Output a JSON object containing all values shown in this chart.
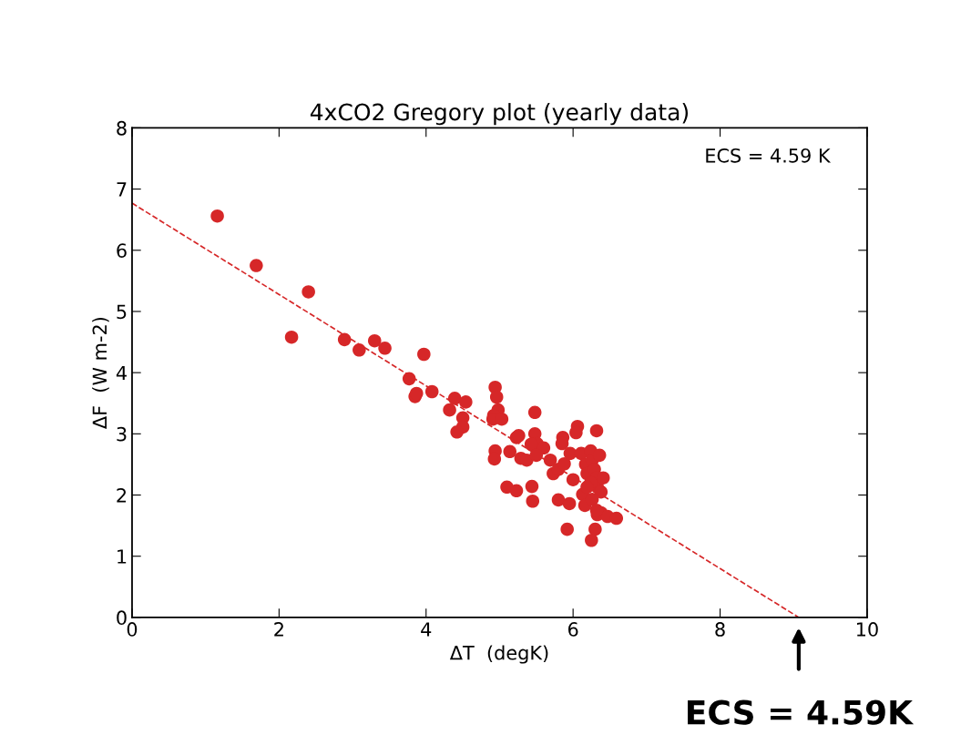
{
  "chart_data": {
    "type": "scatter",
    "title": "4xCO2 Gregory plot (yearly data)",
    "xlabel": "ΔT  (degK)",
    "ylabel": "ΔF  (W m-2)",
    "xlim": [
      0,
      10
    ],
    "ylim": [
      0,
      8
    ],
    "xticks": [
      0,
      2,
      4,
      6,
      8,
      10
    ],
    "yticks": [
      0,
      1,
      2,
      3,
      4,
      5,
      6,
      7,
      8
    ],
    "grid": false,
    "marker": "circle",
    "annotations": [
      "ECS = 4.59 K",
      {
        "text": "ECS = 4.59K",
        "x": 9.07,
        "y": 0
      }
    ],
    "series": [
      {
        "color": "#d62728",
        "x": [
          1.16,
          1.69,
          2.4,
          2.17,
          2.89,
          3.09,
          3.3,
          3.44,
          3.97,
          3.77,
          3.85,
          3.87,
          4.08,
          4.32,
          4.39,
          4.54,
          4.5,
          4.5,
          4.42,
          4.94,
          4.96,
          4.98,
          4.92,
          4.91,
          5.03,
          4.94,
          4.93,
          5.1,
          5.23,
          5.44,
          5.45,
          5.14,
          5.23,
          5.26,
          5.29,
          5.37,
          5.48,
          5.48,
          5.51,
          5.43,
          5.6,
          5.5,
          5.69,
          5.73,
          5.8,
          5.86,
          5.85,
          5.88,
          5.96,
          5.8,
          5.95,
          5.92,
          6.0,
          6.06,
          6.04,
          6.11,
          6.17,
          6.19,
          6.13,
          6.16,
          6.24,
          6.26,
          6.29,
          6.32,
          6.36,
          6.33,
          6.38,
          6.41,
          6.26,
          6.32,
          6.38,
          6.33,
          6.47,
          6.59,
          6.3,
          6.25,
          6.24,
          6.19,
          6.32
        ],
        "values": [
          6.56,
          5.75,
          5.32,
          4.58,
          4.54,
          4.37,
          4.52,
          4.4,
          4.3,
          3.9,
          3.61,
          3.66,
          3.69,
          3.39,
          3.58,
          3.52,
          3.26,
          3.11,
          3.03,
          3.76,
          3.6,
          3.39,
          3.3,
          3.24,
          3.24,
          2.72,
          2.59,
          2.13,
          2.07,
          2.14,
          1.9,
          2.71,
          2.94,
          2.97,
          2.6,
          2.57,
          3.35,
          3.0,
          2.84,
          2.83,
          2.77,
          2.65,
          2.57,
          2.35,
          2.42,
          2.94,
          2.84,
          2.51,
          2.68,
          1.92,
          1.86,
          1.44,
          2.25,
          3.12,
          3.02,
          2.68,
          2.5,
          2.35,
          2.01,
          1.83,
          2.72,
          2.57,
          2.42,
          2.28,
          2.65,
          2.13,
          2.05,
          2.28,
          1.93,
          3.05,
          1.71,
          1.68,
          1.65,
          1.62,
          1.44,
          1.26,
          2.2,
          2.13,
          1.75
        ]
      },
      {
        "type": "line",
        "color": "#d62728",
        "line_style": "dashed",
        "marker": "none",
        "x": [
          0,
          9.07
        ],
        "values": [
          6.77,
          0
        ]
      }
    ]
  }
}
